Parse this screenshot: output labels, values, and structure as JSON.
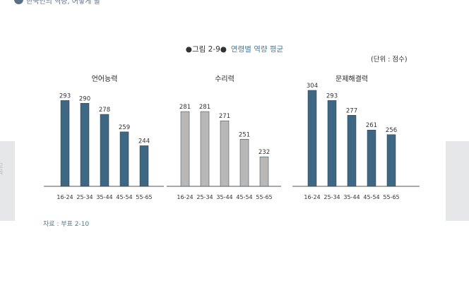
{
  "header": {
    "text": "한국인의 역량, 어떻게 될"
  },
  "side_tab": {
    "text": "교육"
  },
  "figure": {
    "number": "●그림 2-9●",
    "title": "연령별 역량 평균",
    "unit": "(단위 : 점수)",
    "source": "자료 : 부표 2-10"
  },
  "colors": {
    "blue": "#3e6784",
    "gray": "#b8b8b8",
    "accent": "#4a7b9a"
  },
  "chart_data": {
    "type": "bar",
    "ylim": [
      200,
      310
    ],
    "categories": [
      "16-24",
      "25-34",
      "35-44",
      "45-54",
      "55-65"
    ],
    "panels": [
      {
        "title": "언어능력",
        "values": [
          293,
          290,
          278,
          259,
          244
        ],
        "color": "blue"
      },
      {
        "title": "수리력",
        "values": [
          281,
          281,
          271,
          251,
          232
        ],
        "color": "gray"
      },
      {
        "title": "문제해결력",
        "values": [
          304,
          293,
          277,
          261,
          256
        ],
        "color": "blue"
      }
    ]
  }
}
